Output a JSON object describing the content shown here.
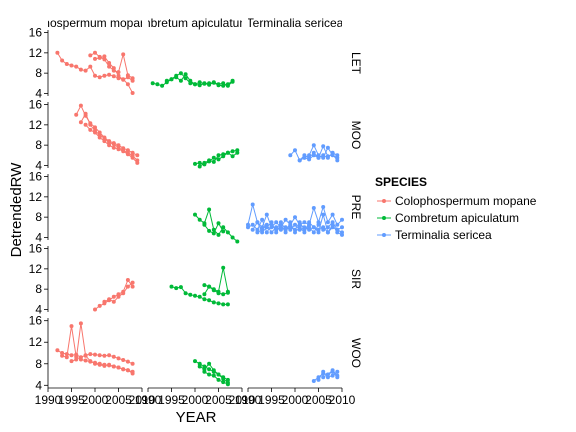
{
  "chart_data": {
    "type": "line",
    "xlabel": "YEAR",
    "ylabel": "DetrendedRW",
    "xlim": [
      1990,
      2010
    ],
    "ylim": [
      3.5,
      16.5
    ],
    "x_ticks": [
      1990,
      1995,
      2000,
      2005,
      2010
    ],
    "y_ticks": [
      4,
      8,
      12,
      16
    ],
    "column_facets": [
      "Colophospermum mopane",
      "Combretum apiculatum",
      "Terminalia sericea"
    ],
    "column_strip_labels": [
      "phospermum mopane",
      "mbretum apiculatum",
      "Terminalia sericea"
    ],
    "row_facets": [
      "LET",
      "MOO",
      "PRE",
      "SIR",
      "WOO"
    ],
    "legend": {
      "title": "SPECIES",
      "position": "right",
      "entries": [
        "Colophospermum mopane",
        "Combretum apiculatum",
        "Terminalia sericea"
      ]
    },
    "colors": {
      "Colophospermum mopane": "#F8766D",
      "Combretum apiculatum": "#00BA38",
      "Terminalia sericea": "#619CFF"
    },
    "series": [
      {
        "species": "Colophospermum mopane",
        "site": "LET",
        "x": [
          1992,
          1993,
          1994,
          1995,
          1996,
          1997,
          1998,
          1999,
          2000,
          2001,
          2002,
          2003,
          2004,
          2005,
          2006,
          2007,
          2008
        ],
        "y": [
          12.0,
          10.5,
          9.8,
          9.5,
          9.3,
          8.7,
          8.5,
          9.3,
          7.5,
          7.2,
          7.5,
          7.7,
          7.4,
          7.0,
          6.8,
          5.8,
          4.1
        ]
      },
      {
        "species": "Colophospermum mopane",
        "site": "LET",
        "x": [
          1999,
          2000,
          2001,
          2002,
          2003,
          2004,
          2005,
          2006,
          2007,
          2008
        ],
        "y": [
          11.5,
          12.0,
          11.2,
          10.7,
          9.3,
          8.5,
          8.2,
          11.7,
          7.6,
          7.0
        ]
      },
      {
        "species": "Colophospermum mopane",
        "site": "LET",
        "x": [
          2000,
          2001,
          2002,
          2003,
          2004,
          2005,
          2006,
          2007,
          2008
        ],
        "y": [
          10.8,
          11.0,
          11.3,
          10.0,
          9.0,
          7.5,
          6.7,
          7.2,
          6.5
        ]
      },
      {
        "species": "Colophospermum mopane",
        "site": "MOO",
        "x": [
          1996,
          1997,
          1998,
          1999,
          2000,
          2001,
          2002,
          2003,
          2004,
          2005,
          2006,
          2007,
          2008,
          2009
        ],
        "y": [
          14.0,
          15.8,
          13.8,
          12.3,
          11.5,
          10.5,
          9.5,
          8.8,
          8.4,
          8.0,
          7.4,
          7.0,
          6.5,
          6.0
        ]
      },
      {
        "species": "Colophospermum mopane",
        "site": "MOO",
        "x": [
          1997,
          1998,
          1999,
          2000,
          2001,
          2002,
          2003,
          2004,
          2005,
          2006,
          2007,
          2008,
          2009
        ],
        "y": [
          12.5,
          14.2,
          12.0,
          10.8,
          10.0,
          9.4,
          8.5,
          8.2,
          7.5,
          7.0,
          6.5,
          5.9,
          5.0
        ]
      },
      {
        "species": "Colophospermum mopane",
        "site": "MOO",
        "x": [
          1998,
          1999,
          2000,
          2001,
          2002,
          2003,
          2004,
          2005,
          2006,
          2007,
          2008,
          2009
        ],
        "y": [
          12.0,
          11.0,
          10.5,
          9.5,
          8.8,
          8.0,
          7.5,
          7.2,
          6.8,
          6.2,
          5.5,
          4.5
        ]
      },
      {
        "species": "Colophospermum mopane",
        "site": "SIR",
        "x": [
          2000,
          2001,
          2002,
          2003,
          2004,
          2005,
          2006,
          2007,
          2008
        ],
        "y": [
          4.0,
          4.7,
          5.2,
          5.8,
          6.5,
          7.0,
          7.5,
          9.8,
          8.5
        ]
      },
      {
        "species": "Colophospermum mopane",
        "site": "SIR",
        "x": [
          2002,
          2003,
          2004,
          2005,
          2006,
          2007,
          2008
        ],
        "y": [
          5.5,
          6.0,
          5.5,
          6.5,
          7.2,
          8.5,
          9.3
        ]
      },
      {
        "species": "Colophospermum mopane",
        "site": "WOO",
        "x": [
          1992,
          1993,
          1994,
          1995,
          1996,
          1997,
          1998,
          1999,
          2000,
          2001,
          2002,
          2003,
          2004,
          2005,
          2006,
          2007,
          2008
        ],
        "y": [
          10.5,
          10.0,
          9.8,
          9.6,
          9.7,
          9.2,
          9.6,
          9.8,
          9.7,
          9.6,
          9.5,
          9.6,
          9.3,
          9.0,
          8.7,
          8.4,
          8.0
        ]
      },
      {
        "species": "Colophospermum mopane",
        "site": "WOO",
        "x": [
          1993,
          1994,
          1995,
          1996,
          1997,
          1998,
          1999,
          2000,
          2001,
          2002,
          2003,
          2004,
          2005,
          2006,
          2007,
          2008
        ],
        "y": [
          9.5,
          9.2,
          15.0,
          9.3,
          8.8,
          8.6,
          8.4,
          8.2,
          8.0,
          7.8,
          7.7,
          7.5,
          7.3,
          7.0,
          6.8,
          6.5
        ]
      },
      {
        "species": "Colophospermum mopane",
        "site": "WOO",
        "x": [
          1995,
          1996,
          1997,
          1998,
          1999,
          2000,
          2001,
          2002,
          2003,
          2004,
          2005,
          2006,
          2007,
          2008
        ],
        "y": [
          8.5,
          8.8,
          15.5,
          9.5,
          8.5,
          8.0,
          7.8,
          7.6,
          7.8,
          7.5,
          7.3,
          7.0,
          6.8,
          6.2
        ]
      },
      {
        "species": "Combretum apiculatum",
        "site": "LET",
        "x": [
          1991,
          1992,
          1993,
          1994,
          1995,
          1996,
          1997,
          1998,
          1999,
          2000,
          2001,
          2002,
          2003,
          2004,
          2005,
          2006,
          2007,
          2008
        ],
        "y": [
          6.0,
          5.8,
          5.5,
          6.2,
          6.8,
          7.5,
          8.0,
          7.0,
          6.0,
          5.8,
          5.6,
          6.0,
          5.7,
          6.2,
          5.8,
          6.0,
          5.5,
          6.3
        ]
      },
      {
        "species": "Combretum apiculatum",
        "site": "LET",
        "x": [
          1994,
          1995,
          1996,
          1997,
          1998,
          1999,
          2000,
          2001,
          2002,
          2003,
          2004,
          2005,
          2006,
          2007,
          2008
        ],
        "y": [
          6.5,
          6.8,
          7.2,
          6.5,
          7.8,
          6.5,
          5.8,
          6.2,
          5.9,
          6.0,
          6.1,
          5.6,
          5.5,
          5.8,
          6.5
        ]
      },
      {
        "species": "Combretum apiculatum",
        "site": "MOO",
        "x": [
          2000,
          2001,
          2002,
          2003,
          2004,
          2005,
          2006,
          2007,
          2008,
          2009
        ],
        "y": [
          4.3,
          4.5,
          4.2,
          4.8,
          5.5,
          5.2,
          5.8,
          6.5,
          6.8,
          7.0
        ]
      },
      {
        "species": "Combretum apiculatum",
        "site": "MOO",
        "x": [
          2001,
          2002,
          2003,
          2004,
          2005,
          2006,
          2007,
          2008,
          2009
        ],
        "y": [
          3.8,
          4.5,
          5.0,
          4.7,
          6.0,
          6.2,
          6.5,
          5.8,
          6.5
        ]
      },
      {
        "species": "Combretum apiculatum",
        "site": "PRE",
        "x": [
          2000,
          2001,
          2002,
          2003,
          2004,
          2005,
          2006,
          2007,
          2008,
          2009
        ],
        "y": [
          8.5,
          7.5,
          6.8,
          9.5,
          5.5,
          4.5,
          6.0,
          5.0,
          4.0,
          3.2
        ]
      },
      {
        "species": "Combretum apiculatum",
        "site": "PRE",
        "x": [
          2002,
          2003,
          2004,
          2005,
          2006
        ],
        "y": [
          6.5,
          5.3,
          4.8,
          6.8,
          5.2
        ]
      },
      {
        "species": "Combretum apiculatum",
        "site": "SIR",
        "x": [
          1995,
          1996,
          1997,
          1998,
          1999,
          2000,
          2001,
          2002,
          2003,
          2004,
          2005,
          2006,
          2007
        ],
        "y": [
          8.5,
          8.2,
          8.4,
          7.2,
          6.9,
          6.7,
          6.5,
          6.0,
          5.8,
          5.4,
          5.2,
          5.0,
          5.0
        ]
      },
      {
        "species": "Combretum apiculatum",
        "site": "SIR",
        "x": [
          2002,
          2003,
          2004,
          2005,
          2006,
          2007
        ],
        "y": [
          8.8,
          8.5,
          8.0,
          7.5,
          12.2,
          7.5
        ]
      },
      {
        "species": "Combretum apiculatum",
        "site": "SIR",
        "x": [
          2002,
          2003,
          2004,
          2005,
          2006,
          2007
        ],
        "y": [
          7.0,
          8.5,
          7.8,
          7.2,
          7.0,
          7.3
        ]
      },
      {
        "species": "Combretum apiculatum",
        "site": "WOO",
        "x": [
          2000,
          2001,
          2002,
          2003,
          2004,
          2005,
          2006,
          2007
        ],
        "y": [
          8.5,
          8.0,
          7.5,
          7.0,
          6.5,
          6.0,
          5.5,
          5.0
        ]
      },
      {
        "species": "Combretum apiculatum",
        "site": "WOO",
        "x": [
          2001,
          2002,
          2003,
          2004,
          2005,
          2006,
          2007
        ],
        "y": [
          7.5,
          7.0,
          8.0,
          6.8,
          6.0,
          5.2,
          4.5
        ]
      },
      {
        "species": "Combretum apiculatum",
        "site": "WOO",
        "x": [
          2002,
          2003,
          2004,
          2005,
          2006,
          2007
        ],
        "y": [
          6.5,
          6.0,
          5.8,
          5.0,
          4.6,
          4.2
        ]
      },
      {
        "species": "Terminalia sericea",
        "site": "MOO",
        "x": [
          1999,
          2000,
          2001,
          2002,
          2003,
          2004,
          2005,
          2006,
          2007,
          2008,
          2009
        ],
        "y": [
          6.0,
          7.0,
          5.0,
          5.5,
          6.0,
          8.0,
          6.0,
          5.5,
          7.5,
          6.0,
          5.5
        ]
      },
      {
        "species": "Terminalia sericea",
        "site": "MOO",
        "x": [
          2001,
          2002,
          2003,
          2004,
          2005,
          2006,
          2007,
          2008,
          2009
        ],
        "y": [
          5.0,
          6.0,
          5.5,
          6.5,
          5.5,
          7.8,
          5.8,
          6.2,
          5.0
        ]
      },
      {
        "species": "Terminalia sericea",
        "site": "MOO",
        "x": [
          2002,
          2003,
          2004,
          2005,
          2006,
          2007,
          2008,
          2009
        ],
        "y": [
          5.5,
          5.2,
          6.0,
          5.5,
          6.0,
          5.5,
          6.5,
          6.0
        ]
      },
      {
        "species": "Terminalia sericea",
        "site": "PRE",
        "x": [
          1990,
          1991,
          1992,
          1993,
          1994,
          1995,
          1996,
          1997,
          1998,
          1999,
          2000,
          2001,
          2002,
          2003,
          2004,
          2005,
          2006,
          2007,
          2008,
          2009,
          2010
        ],
        "y": [
          6.5,
          10.5,
          7.0,
          6.0,
          8.5,
          6.0,
          7.0,
          6.0,
          7.5,
          6.5,
          8.0,
          6.5,
          7.0,
          6.5,
          9.8,
          7.0,
          10.0,
          7.0,
          8.5,
          6.5,
          7.5
        ]
      },
      {
        "species": "Terminalia sericea",
        "site": "PRE",
        "x": [
          1990,
          1991,
          1992,
          1993,
          1994,
          1995,
          1996,
          1997,
          1998,
          1999,
          2000,
          2001,
          2002,
          2003,
          2004,
          2005,
          2006,
          2007,
          2008,
          2009,
          2010
        ],
        "y": [
          6.0,
          6.5,
          5.5,
          7.5,
          5.0,
          6.5,
          5.5,
          7.0,
          5.5,
          6.0,
          5.5,
          7.0,
          5.5,
          6.0,
          5.0,
          6.5,
          5.5,
          6.0,
          7.0,
          5.5,
          6.0
        ]
      },
      {
        "species": "Terminalia sericea",
        "site": "PRE",
        "x": [
          1991,
          1992,
          1993,
          1994,
          1995,
          1996,
          1997,
          1998,
          1999,
          2000,
          2001,
          2002,
          2003,
          2004,
          2005,
          2006,
          2007,
          2008,
          2009,
          2010
        ],
        "y": [
          5.5,
          7.0,
          5.0,
          6.0,
          7.0,
          5.0,
          6.5,
          5.0,
          7.0,
          5.0,
          6.0,
          5.0,
          7.0,
          6.0,
          5.0,
          8.5,
          5.0,
          6.5,
          5.0,
          4.5
        ]
      },
      {
        "species": "Terminalia sericea",
        "site": "PRE",
        "x": [
          1992,
          1993,
          1994,
          1995,
          1996,
          1997,
          1998,
          1999,
          2000,
          2001,
          2002,
          2003,
          2004,
          2005,
          2006,
          2007,
          2008,
          2009,
          2010
        ],
        "y": [
          5.0,
          5.5,
          6.5,
          5.0,
          6.0,
          5.5,
          6.0,
          5.5,
          6.5,
          5.5,
          6.0,
          5.5,
          6.0,
          5.5,
          6.0,
          5.0,
          6.0,
          5.5,
          5.0
        ]
      },
      {
        "species": "Terminalia sericea",
        "site": "WOO",
        "x": [
          2004,
          2005,
          2006,
          2007,
          2008,
          2009
        ],
        "y": [
          4.8,
          5.5,
          6.2,
          6.0,
          6.5,
          5.5
        ]
      },
      {
        "species": "Terminalia sericea",
        "site": "WOO",
        "x": [
          2005,
          2006,
          2007,
          2008,
          2009
        ],
        "y": [
          5.0,
          6.5,
          5.5,
          5.8,
          6.5
        ]
      },
      {
        "species": "Terminalia sericea",
        "site": "WOO",
        "x": [
          2006,
          2007,
          2008,
          2009
        ],
        "y": [
          5.5,
          6.0,
          6.8,
          5.8
        ]
      }
    ]
  }
}
